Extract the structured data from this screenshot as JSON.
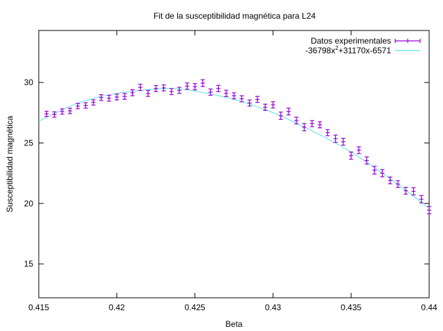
{
  "chart_data": {
    "type": "scatter",
    "title": "Fit de la susceptibilidad magnética para L24",
    "xlabel": "Beta",
    "ylabel": "Susceptibilidad magnética",
    "xlim": [
      0.415,
      0.44
    ],
    "ylim": [
      12.2,
      34.3
    ],
    "xticks": [
      0.415,
      0.42,
      0.425,
      0.43,
      0.435,
      0.44
    ],
    "xtick_labels": [
      "0.415",
      "0.42",
      "0.425",
      "0.43",
      "0.435",
      "0.44"
    ],
    "yticks": [
      15,
      20,
      25,
      30
    ],
    "ytick_labels": [
      "15",
      "20",
      "25",
      "30"
    ],
    "grid": false,
    "legend_position": "top-right",
    "series": [
      {
        "name": "Datos experimentales",
        "kind": "errorbar",
        "color": "#9400d3",
        "x": [
          0.4155,
          0.416,
          0.4165,
          0.417,
          0.4175,
          0.418,
          0.4185,
          0.419,
          0.4195,
          0.42,
          0.4205,
          0.421,
          0.4215,
          0.422,
          0.4225,
          0.423,
          0.4235,
          0.424,
          0.4245,
          0.425,
          0.4255,
          0.426,
          0.4265,
          0.427,
          0.4275,
          0.428,
          0.4285,
          0.429,
          0.4295,
          0.43,
          0.4305,
          0.431,
          0.4315,
          0.432,
          0.4325,
          0.433,
          0.4335,
          0.434,
          0.4345,
          0.435,
          0.4355,
          0.436,
          0.4365,
          0.437,
          0.4375,
          0.438,
          0.4385,
          0.439,
          0.4395,
          0.44
        ],
        "y": [
          27.4,
          27.35,
          27.6,
          27.65,
          28.05,
          28.1,
          28.35,
          28.75,
          28.7,
          28.8,
          28.85,
          29.15,
          29.6,
          29.1,
          29.5,
          29.55,
          29.25,
          29.35,
          29.7,
          29.65,
          29.95,
          29.2,
          29.5,
          29.1,
          28.9,
          28.65,
          28.3,
          28.6,
          27.95,
          28.15,
          27.25,
          27.6,
          26.85,
          26.3,
          26.6,
          26.5,
          25.85,
          25.35,
          25.1,
          23.95,
          24.4,
          23.55,
          22.75,
          22.5,
          21.9,
          21.6,
          21.05,
          21.0,
          20.35,
          19.45
        ],
        "yerr": [
          0.22,
          0.22,
          0.22,
          0.22,
          0.22,
          0.22,
          0.22,
          0.24,
          0.24,
          0.24,
          0.24,
          0.25,
          0.26,
          0.25,
          0.25,
          0.25,
          0.25,
          0.25,
          0.26,
          0.26,
          0.28,
          0.26,
          0.26,
          0.26,
          0.25,
          0.25,
          0.25,
          0.25,
          0.26,
          0.26,
          0.3,
          0.28,
          0.28,
          0.3,
          0.25,
          0.25,
          0.25,
          0.3,
          0.28,
          0.3,
          0.28,
          0.3,
          0.32,
          0.3,
          0.28,
          0.28,
          0.28,
          0.3,
          0.3,
          0.3
        ]
      },
      {
        "name": "-36798x²+31170x-6571",
        "kind": "fit",
        "color": "#5ce1e6",
        "x": [
          0.415,
          0.4175,
          0.42,
          0.4225,
          0.4235,
          0.425,
          0.4275,
          0.43,
          0.4325,
          0.435,
          0.4375,
          0.44
        ],
        "y": [
          26.8,
          28.3,
          29.1,
          29.45,
          29.5,
          29.3,
          28.6,
          27.5,
          26.0,
          24.25,
          22.05,
          19.6
        ]
      }
    ],
    "legend": {
      "entries": [
        {
          "label": "Datos experimentales"
        },
        {
          "label_main": "-36798x",
          "label_sup": "2",
          "label_rest": "+31170x-6571"
        }
      ]
    }
  }
}
